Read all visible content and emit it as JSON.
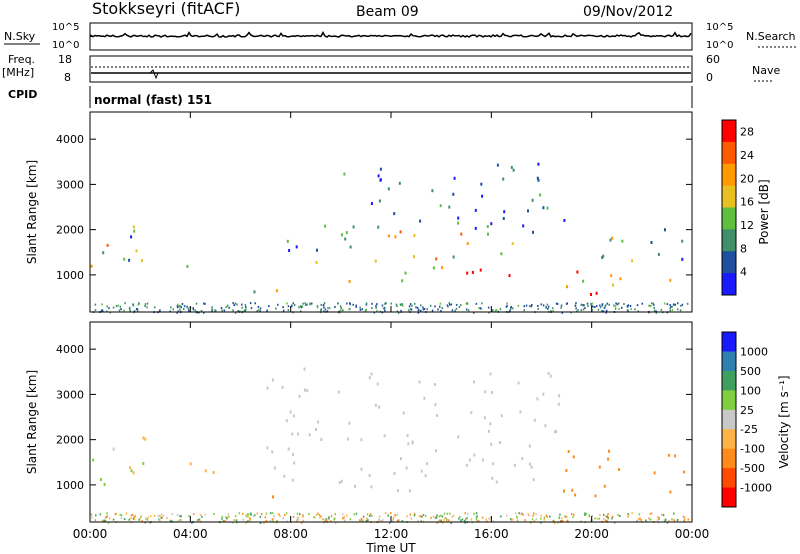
{
  "header": {
    "station": "Stokkseyri (fitACF)",
    "beam": "Beam 09",
    "date": "09/Nov/2012"
  },
  "status": {
    "nsky_label": "N.Sky",
    "nsky_ticks": [
      "10^5",
      "10^0"
    ],
    "nsearch_label": "N.Search",
    "nsearch_ticks": [
      "10^5",
      "10^0"
    ],
    "freq_label": "Freq.",
    "freq_unit": "[MHz]",
    "freq_ticks": [
      "18",
      "8"
    ],
    "nave_label": "Nave",
    "nave_ticks": [
      "60",
      "0"
    ],
    "cpid_label": "CPID",
    "cpid_value": "normal (fast) 151"
  },
  "colors": {
    "power_scale": [
      "#1a1aff",
      "#1f4fa0",
      "#3f8f6a",
      "#5fbf3f",
      "#e8c020",
      "#ff9a00",
      "#ff5a00",
      "#ff0000"
    ],
    "velocity_scale": [
      "#ff0000",
      "#ff4a00",
      "#ff8c1a",
      "#ffb347",
      "#c8c8c8",
      "#7fcf3f",
      "#3f9f5f",
      "#2f7faf",
      "#1a1aff"
    ],
    "ground_scatter": "#c8c8c8"
  },
  "chart_data": [
    {
      "type": "heatmap",
      "panel": "power",
      "ylabel": "Slant Range [km]",
      "xlabel": "",
      "x_range": [
        "00:00",
        "24:00"
      ],
      "ylim": [
        180,
        4600
      ],
      "yticks": [
        1000,
        2000,
        3000,
        4000
      ],
      "colorbar": {
        "label": "Power [dB]",
        "ticks": [
          4,
          8,
          12,
          16,
          20,
          24,
          28
        ],
        "range": [
          0,
          30
        ]
      },
      "regions": [
        {
          "t": [
            0.0,
            2.2
          ],
          "r": [
            900,
            1900
          ],
          "v": 22
        },
        {
          "t": [
            1.5,
            2.8
          ],
          "r": [
            1200,
            2300
          ],
          "v": 12
        },
        {
          "t": [
            3.8,
            5.2
          ],
          "r": [
            900,
            1300
          ],
          "v": 20
        },
        {
          "t": [
            6.5,
            8.5
          ],
          "r": [
            650,
            900
          ],
          "v": 14
        },
        {
          "t": [
            7.2,
            10.5
          ],
          "r": [
            1200,
            2200
          ],
          "v": 8
        },
        {
          "t": [
            10.0,
            18.5
          ],
          "r": [
            850,
            1200
          ],
          "v": 25
        },
        {
          "t": [
            11.0,
            18.5
          ],
          "r": [
            1300,
            2000
          ],
          "v": 16
        },
        {
          "t": [
            10.0,
            19.0
          ],
          "r": [
            2000,
            3500
          ],
          "v": 6
        },
        {
          "t": [
            18.5,
            20.5
          ],
          "r": [
            600,
            1300
          ],
          "v": 22
        },
        {
          "t": [
            20.0,
            24.0
          ],
          "r": [
            800,
            2100
          ],
          "v": 12
        }
      ]
    },
    {
      "type": "heatmap",
      "panel": "velocity",
      "ylabel": "Slant Range [km]",
      "xlabel": "Time UT",
      "x_range": [
        "00:00",
        "24:00"
      ],
      "xticks": [
        "00:00",
        "04:00",
        "08:00",
        "12:00",
        "16:00",
        "20:00",
        "00:00"
      ],
      "ylim": [
        180,
        4600
      ],
      "yticks": [
        1000,
        2000,
        3000,
        4000
      ],
      "colorbar": {
        "label": "Velocity [m s⁻¹]",
        "ticks": [
          1000,
          500,
          100,
          25,
          -25,
          -100,
          -500,
          -1000
        ]
      },
      "regions": [
        {
          "t": [
            0.0,
            2.2
          ],
          "r": [
            900,
            1900
          ],
          "v": 40
        },
        {
          "t": [
            1.5,
            2.8
          ],
          "r": [
            1200,
            2300
          ],
          "v": -80
        },
        {
          "t": [
            3.8,
            5.2
          ],
          "r": [
            900,
            1500
          ],
          "v": -60
        },
        {
          "t": [
            6.5,
            8.5
          ],
          "r": [
            650,
            900
          ],
          "v": -150
        },
        {
          "t": [
            7.0,
            19.0
          ],
          "r": [
            900,
            3600
          ],
          "v": 0,
          "ground_scatter": true
        },
        {
          "t": [
            18.5,
            24.0
          ],
          "r": [
            700,
            1800
          ],
          "v": -300
        }
      ]
    }
  ]
}
